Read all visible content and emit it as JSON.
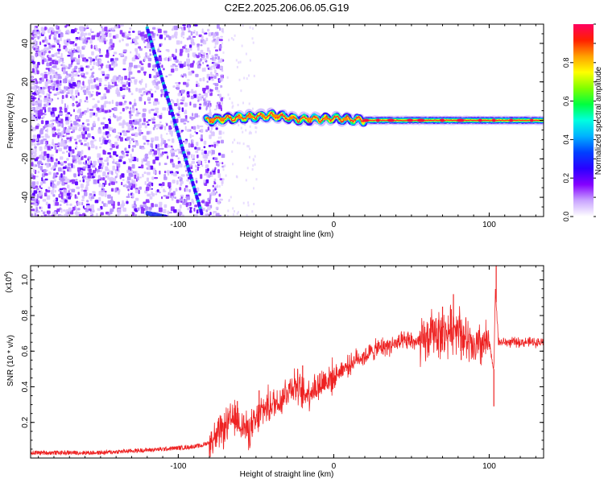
{
  "figure": {
    "title": "C2E2.2025.206.06.05.G19"
  },
  "colors": {
    "spectrogram_scatter": "#6a00ff",
    "snr_line": "#ee2222",
    "trace_teal": "#17c0d6"
  },
  "chart_data": [
    {
      "type": "heatmap",
      "title": "C2E2.2025.206.06.05.G19",
      "xlabel": "Height of straight line (km)",
      "ylabel": "Frequency (Hz)",
      "xlim": [
        -195,
        135
      ],
      "ylim": [
        -50,
        50
      ],
      "xticks": [
        -100,
        0,
        100
      ],
      "yticks": [
        -40,
        -20,
        0,
        20,
        40
      ],
      "grid": false,
      "colorbar": {
        "label": "Normalized spectral amplitude",
        "range": [
          0,
          1
        ],
        "ticks": [
          0.0,
          0.2,
          0.4,
          0.6,
          0.8
        ],
        "colormap": [
          "#ffffff",
          "#c9a4ff",
          "#8400ff",
          "#2a00ff",
          "#0040ff",
          "#00b0ff",
          "#00ffe0",
          "#00ff40",
          "#80ff00",
          "#ffff00",
          "#ffa000",
          "#ff2000",
          "#ff0060"
        ]
      },
      "features": {
        "noise_region_km": [
          -195,
          -78
        ],
        "signal_ridge": {
          "start_km": -82,
          "end_km": 135,
          "frequency_hz": 0,
          "description_points_hz": [
            [
              -82,
              0
            ],
            [
              -60,
              1.5
            ],
            [
              -40,
              2.5
            ],
            [
              -20,
              0.5
            ],
            [
              0,
              1
            ],
            [
              20,
              0
            ],
            [
              60,
              0
            ],
            [
              100,
              0
            ],
            [
              135,
              0
            ]
          ]
        },
        "diagonal_trace": {
          "from": [
            -120,
            48
          ],
          "to": [
            -85,
            -48
          ]
        },
        "secondary_trace": {
          "from": [
            -120,
            -48
          ],
          "to": [
            -108,
            -50
          ]
        }
      }
    },
    {
      "type": "line",
      "xlabel": "Height of straight line (km)",
      "ylabel": "SNR (10 * v/v)",
      "y_multiplier_label": "(x10",
      "y_multiplier_exp": "4",
      "xlim": [
        -195,
        135
      ],
      "ylim": [
        0,
        1.08
      ],
      "xticks": [
        -100,
        0,
        100
      ],
      "yticks": [
        0.2,
        0.4,
        0.6,
        0.8,
        1.0
      ],
      "grid": false,
      "series": [
        {
          "x": [
            -195,
            -170,
            -150,
            -130,
            -110,
            -95,
            -85,
            -80,
            -75,
            -70,
            -65,
            -60,
            -55,
            -50,
            -45,
            -40,
            -35,
            -30,
            -25,
            -20,
            -15,
            -10,
            -5,
            0,
            5,
            10,
            15,
            20,
            25,
            30,
            40,
            50,
            55,
            60,
            65,
            70,
            75,
            80,
            85,
            90,
            95,
            100,
            103,
            104,
            106,
            110,
            120,
            135
          ],
          "y": [
            0.03,
            0.03,
            0.03,
            0.04,
            0.05,
            0.06,
            0.07,
            0.09,
            0.12,
            0.17,
            0.22,
            0.2,
            0.15,
            0.2,
            0.28,
            0.3,
            0.32,
            0.38,
            0.42,
            0.35,
            0.38,
            0.4,
            0.44,
            0.45,
            0.5,
            0.52,
            0.56,
            0.57,
            0.6,
            0.62,
            0.64,
            0.66,
            0.64,
            0.66,
            0.72,
            0.68,
            0.72,
            0.75,
            0.66,
            0.6,
            0.64,
            0.64,
            0.5,
            0.95,
            0.65,
            0.65,
            0.65,
            0.65
          ],
          "spikes": [
            [
              -62,
              0.32
            ],
            [
              -48,
              0.38
            ],
            [
              -20,
              0.52
            ],
            [
              70,
              0.85
            ],
            [
              77,
              0.92
            ],
            [
              82,
              0.55
            ],
            [
              103,
              0.29
            ],
            [
              104.5,
              1.08
            ]
          ]
        }
      ]
    }
  ]
}
